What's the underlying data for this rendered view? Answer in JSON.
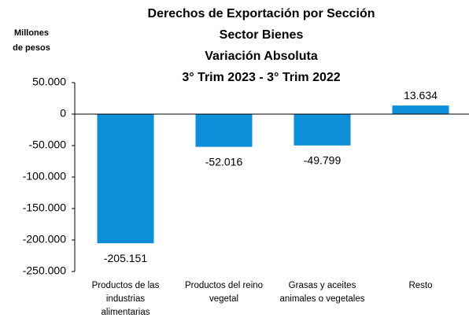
{
  "chart_data": {
    "type": "bar",
    "title": [
      "Derechos de Exportación por Sección",
      "Sector Bienes",
      "Variación Absoluta",
      "3° Trim 2023 - 3° Trim 2022"
    ],
    "ylabel": [
      "Millones",
      "de pesos"
    ],
    "categories": [
      "Productos de las industrias alimentarias",
      "Productos del reino vegetal",
      "Grasas y aceites animales o vegetales",
      "Resto"
    ],
    "values": [
      -205151,
      -52016,
      -49799,
      13634
    ],
    "value_labels": [
      "-205.151",
      "-52.016",
      "-49.799",
      "13.634"
    ],
    "color": "#0d8ed9",
    "ylim": [
      -250000,
      50000
    ],
    "yticks": [
      {
        "value": 50000,
        "label": "50.000"
      },
      0,
      {
        "value": -50000,
        "label": "-50.000"
      },
      {
        "value": -100000,
        "label": "-100.000"
      },
      {
        "value": -150000,
        "label": "-150.000"
      },
      {
        "value": -200000,
        "label": "-200.000"
      },
      {
        "value": -250000,
        "label": "-250.000"
      }
    ],
    "grid": false
  }
}
